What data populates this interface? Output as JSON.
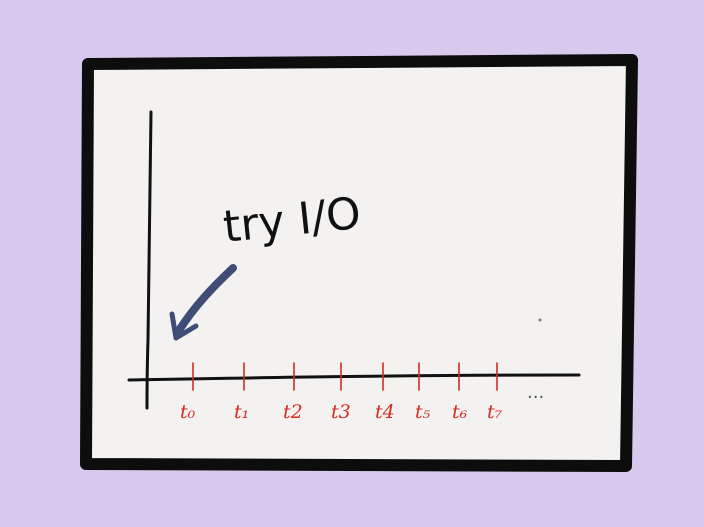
{
  "diagram": {
    "annotation": "try I/O",
    "ticks": [
      {
        "label": "t₀"
      },
      {
        "label": "t₁"
      },
      {
        "label": "t2"
      },
      {
        "label": "t3"
      },
      {
        "label": "t4"
      },
      {
        "label": "t₅"
      },
      {
        "label": "t₆"
      },
      {
        "label": "t₇"
      }
    ],
    "ellipsis": "...",
    "colors": {
      "background": "#d9c9ee",
      "paper": "#f3f2f0",
      "frame": "#0d0d0d",
      "axis": "#111111",
      "ticks": "#d22c22",
      "arrow": "#3f4c78"
    }
  }
}
